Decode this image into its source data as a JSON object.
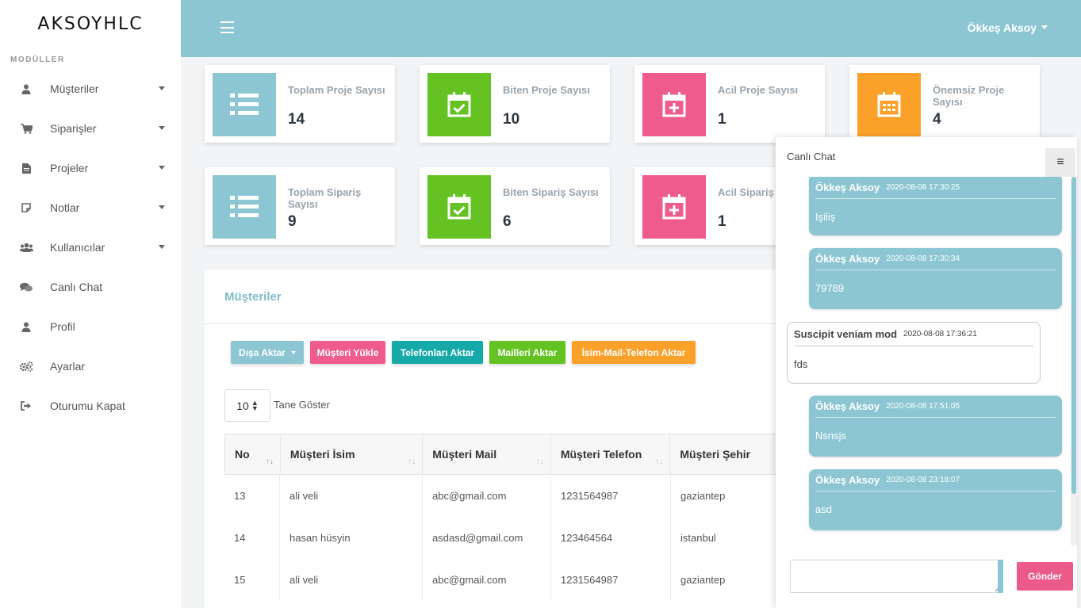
{
  "brand": "AKSOYHLC",
  "sidebar": {
    "section_title": "MODÜLLER",
    "items": [
      {
        "label": "Müşteriler",
        "icon": "user-icon"
      },
      {
        "label": "Siparişler",
        "icon": "cart-icon"
      },
      {
        "label": "Projeler",
        "icon": "file-icon"
      },
      {
        "label": "Notlar",
        "icon": "note-icon"
      },
      {
        "label": "Kullanıcılar",
        "icon": "users-icon"
      },
      {
        "label": "Canlı Chat",
        "icon": "chat-icon"
      },
      {
        "label": "Profil",
        "icon": "user-icon"
      },
      {
        "label": "Ayarlar",
        "icon": "gears-icon"
      },
      {
        "label": "Oturumu Kapat",
        "icon": "logout-icon"
      }
    ]
  },
  "topbar": {
    "user_name": "Ökkeş Aksoy"
  },
  "stats": [
    {
      "title": "Toplam Proje Sayısı",
      "value": "14",
      "color": "#8cc6d3",
      "icon": "list-icon"
    },
    {
      "title": "Biten Proje Sayısı",
      "value": "10",
      "color": "#64c322",
      "icon": "calendar-check-icon"
    },
    {
      "title": "Acil Proje Sayısı",
      "value": "1",
      "color": "#ee5b8c",
      "icon": "calendar-plus-icon"
    },
    {
      "title": "Önemsiz Proje Sayısı",
      "value": "4",
      "color": "#fba12a",
      "icon": "calendar-icon"
    },
    {
      "title": "Toplam Sipariş Sayısı",
      "value": "9",
      "color": "#8cc6d3",
      "icon": "list-icon"
    },
    {
      "title": "Biten Sipariş Sayısı",
      "value": "6",
      "color": "#64c322",
      "icon": "calendar-check-icon"
    },
    {
      "title": "Acil Sipariş Sayısı",
      "value": "1",
      "color": "#ee5b8c",
      "icon": "calendar-plus-icon"
    }
  ],
  "customers": {
    "title": "Müşteriler",
    "buttons": [
      {
        "label": "Dışa Aktar",
        "color": "#8cc6d3"
      },
      {
        "label": "Müşteri Yükle",
        "color": "#ee5b8c"
      },
      {
        "label": "Telefonları Aktar",
        "color": "#17a9a8"
      },
      {
        "label": "Mailleri Aktar",
        "color": "#64c322"
      },
      {
        "label": "İsim-Mail-Telefon Aktar",
        "color": "#fba12a"
      }
    ],
    "page_size": "10",
    "page_size_label": "Tane Göster",
    "columns": [
      "No",
      "Müşteri İsim",
      "Müşteri Mail",
      "Müşteri Telefon",
      "Müşteri Şehir"
    ],
    "rows": [
      [
        "13",
        "ali veli",
        "abc@gmail.com",
        "1231564987",
        "gaziantep"
      ],
      [
        "14",
        "hasan hüsyin",
        "asdasd@gmail.com",
        "123464564",
        "istanbul"
      ],
      [
        "15",
        "ali veli",
        "abc@gmail.com",
        "1231564987",
        "gaziantep"
      ]
    ]
  },
  "chat": {
    "title": "Canlı Chat",
    "messages": [
      {
        "name": "Ökkeş Aksoy",
        "time": "2020-08-08 17:30:25",
        "text": "Işiliş",
        "mine": true
      },
      {
        "name": "Ökkeş Aksoy",
        "time": "2020-08-08 17:30:34",
        "text": "79789",
        "mine": true
      },
      {
        "name": "Suscipit veniam mod",
        "time": "2020-08-08 17:36:21",
        "text": "fds",
        "mine": false
      },
      {
        "name": "Ökkeş Aksoy",
        "time": "2020-08-08 17:51:05",
        "text": "Nsnsjs",
        "mine": true
      },
      {
        "name": "Ökkeş Aksoy",
        "time": "2020-08-08 23:18:07",
        "text": "asd",
        "mine": true
      }
    ],
    "send_label": "Gönder"
  }
}
